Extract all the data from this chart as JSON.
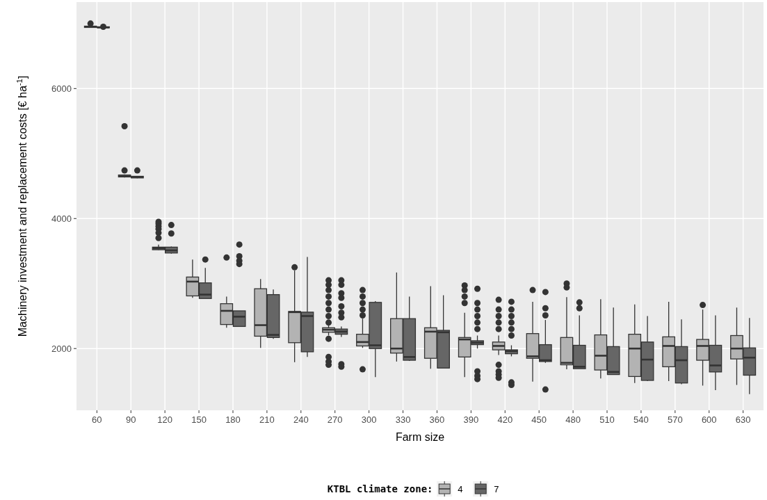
{
  "chart_data": {
    "type": "box",
    "xlabel": "Farm size",
    "ylabel": "Machinery investment and replacement costs [€ ha$^{-1}$]",
    "legend_title": "KTBL climate zone:",
    "legend": "bottom",
    "grid": true,
    "categories": [
      "60",
      "90",
      "120",
      "150",
      "180",
      "210",
      "240",
      "270",
      "300",
      "330",
      "360",
      "390",
      "420",
      "450",
      "480",
      "510",
      "540",
      "570",
      "600",
      "630"
    ],
    "ylim": [
      1050,
      7330
    ],
    "yticks": [
      2000,
      4000,
      6000
    ],
    "series": [
      {
        "name": "4",
        "color": "#b3b3b3",
        "boxes": [
          {
            "low": 6940,
            "q1": 6940,
            "median": 6950,
            "q3": 6960,
            "high": 6960,
            "outliers": [
              7000
            ]
          },
          {
            "low": 4630,
            "q1": 4640,
            "median": 4650,
            "q3": 4670,
            "high": 4680,
            "outliers": [
              5420,
              4740
            ]
          },
          {
            "low": 3510,
            "q1": 3520,
            "median": 3540,
            "q3": 3560,
            "high": 3600,
            "outliers": [
              3950,
              3920,
              3880,
              3840,
              3780,
              3700
            ]
          },
          {
            "low": 2780,
            "q1": 2810,
            "median": 3030,
            "q3": 3100,
            "high": 3370
          },
          {
            "low": 2320,
            "q1": 2370,
            "median": 2580,
            "q3": 2690,
            "high": 2800,
            "outliers": [
              3400
            ]
          },
          {
            "low": 2010,
            "q1": 2190,
            "median": 2360,
            "q3": 2920,
            "high": 3070
          },
          {
            "low": 1790,
            "q1": 2090,
            "median": 2560,
            "q3": 2570,
            "high": 3200,
            "outliers": [
              3250
            ]
          },
          {
            "low": 2200,
            "q1": 2250,
            "median": 2290,
            "q3": 2320,
            "high": 2380,
            "outliers": [
              3050,
              2980,
              2900,
              2800,
              2700,
              2600,
              2500,
              2400,
              2150,
              1870,
              1800,
              1750
            ]
          },
          {
            "low": 2010,
            "q1": 2040,
            "median": 2100,
            "q3": 2220,
            "high": 2460,
            "outliers": [
              2900,
              2800,
              2700,
              2600,
              2510,
              1680
            ]
          },
          {
            "low": 1800,
            "q1": 1930,
            "median": 2000,
            "q3": 2460,
            "high": 3170
          },
          {
            "low": 1690,
            "q1": 1850,
            "median": 2260,
            "q3": 2320,
            "high": 2960
          },
          {
            "low": 1560,
            "q1": 1870,
            "median": 2140,
            "q3": 2170,
            "high": 2550,
            "outliers": [
              2970,
              2900,
              2800,
              2700
            ]
          },
          {
            "low": 1900,
            "q1": 1980,
            "median": 2040,
            "q3": 2100,
            "high": 2200,
            "outliers": [
              2750,
              2600,
              2500,
              2400,
              2300,
              1750,
              1650,
              1600,
              1550
            ]
          },
          {
            "low": 1490,
            "q1": 1850,
            "median": 1880,
            "q3": 2230,
            "high": 2720,
            "outliers": [
              2900
            ]
          },
          {
            "low": 1680,
            "q1": 1750,
            "median": 1780,
            "q3": 2170,
            "high": 2790,
            "outliers": [
              3000,
              2940
            ]
          },
          {
            "low": 1540,
            "q1": 1670,
            "median": 1890,
            "q3": 2210,
            "high": 2760
          },
          {
            "low": 1470,
            "q1": 1570,
            "median": 2000,
            "q3": 2220,
            "high": 2680
          },
          {
            "low": 1500,
            "q1": 1720,
            "median": 2040,
            "q3": 2180,
            "high": 2720
          },
          {
            "low": 1430,
            "q1": 1820,
            "median": 2040,
            "q3": 2140,
            "high": 2600,
            "outliers": [
              2670
            ]
          },
          {
            "low": 1440,
            "q1": 1840,
            "median": 2000,
            "q3": 2200,
            "high": 2630
          }
        ]
      },
      {
        "name": "7",
        "color": "#666666",
        "boxes": [
          {
            "low": 6930,
            "q1": 6935,
            "median": 6940,
            "q3": 6950,
            "high": 6950,
            "outliers": [
              6950
            ]
          },
          {
            "low": 4620,
            "q1": 4625,
            "median": 4640,
            "q3": 4650,
            "high": 4650,
            "outliers": [
              4740
            ]
          },
          {
            "low": 3460,
            "q1": 3470,
            "median": 3510,
            "q3": 3560,
            "high": 3570,
            "outliers": [
              3900,
              3770
            ]
          },
          {
            "low": 2770,
            "q1": 2770,
            "median": 2830,
            "q3": 3010,
            "high": 3240,
            "outliers": [
              3370
            ]
          },
          {
            "low": 2340,
            "q1": 2340,
            "median": 2490,
            "q3": 2580,
            "high": 2580,
            "outliers": [
              3600,
              3420,
              3350,
              3300
            ]
          },
          {
            "low": 2150,
            "q1": 2170,
            "median": 2210,
            "q3": 2830,
            "high": 2910
          },
          {
            "low": 1870,
            "q1": 1950,
            "median": 2500,
            "q3": 2560,
            "high": 3410
          },
          {
            "low": 2180,
            "q1": 2220,
            "median": 2260,
            "q3": 2300,
            "high": 2340,
            "outliers": [
              3050,
              2980,
              2850,
              2780,
              2650,
              2550,
              2480,
              1760,
              1720
            ]
          },
          {
            "low": 1560,
            "q1": 2000,
            "median": 2050,
            "q3": 2710,
            "high": 2730
          },
          {
            "low": 1810,
            "q1": 1820,
            "median": 1870,
            "q3": 2460,
            "high": 2800
          },
          {
            "low": 1700,
            "q1": 1700,
            "median": 2250,
            "q3": 2280,
            "high": 2820
          },
          {
            "low": 2000,
            "q1": 2060,
            "median": 2090,
            "q3": 2120,
            "high": 2200,
            "outliers": [
              2920,
              2700,
              2600,
              2500,
              2400,
              2300,
              1650,
              1580,
              1530
            ]
          },
          {
            "low": 1880,
            "q1": 1920,
            "median": 1960,
            "q3": 1980,
            "high": 2050,
            "outliers": [
              2720,
              2600,
              2500,
              2400,
              2300,
              2200,
              1480,
              1440
            ]
          },
          {
            "low": 1780,
            "q1": 1800,
            "median": 1820,
            "q3": 2060,
            "high": 2440,
            "outliers": [
              2870,
              2620,
              2510,
              1370
            ]
          },
          {
            "low": 1690,
            "q1": 1690,
            "median": 1720,
            "q3": 2050,
            "high": 2510,
            "outliers": [
              2710,
              2620
            ]
          },
          {
            "low": 1600,
            "q1": 1600,
            "median": 1640,
            "q3": 2030,
            "high": 2630
          },
          {
            "low": 1500,
            "q1": 1510,
            "median": 1830,
            "q3": 2100,
            "high": 2500
          },
          {
            "low": 1450,
            "q1": 1470,
            "median": 1820,
            "q3": 2030,
            "high": 2450
          },
          {
            "low": 1360,
            "q1": 1640,
            "median": 1740,
            "q3": 2050,
            "high": 2510
          },
          {
            "low": 1300,
            "q1": 1590,
            "median": 1860,
            "q3": 2010,
            "high": 2470
          }
        ]
      }
    ]
  }
}
